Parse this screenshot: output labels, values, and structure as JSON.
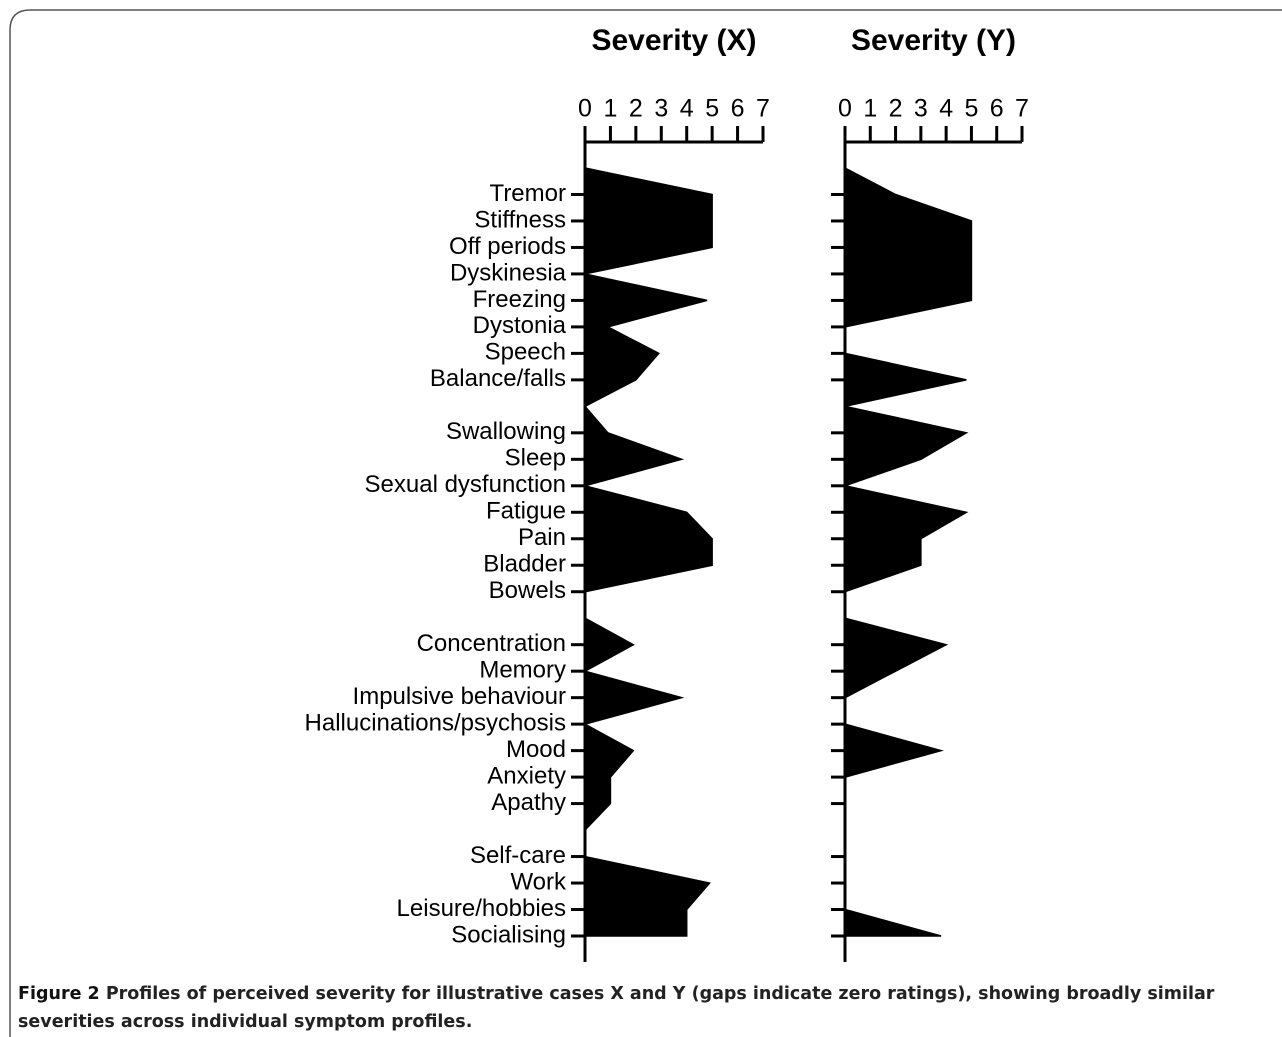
{
  "chart_data": [
    {
      "type": "area",
      "title": "Severity (X)",
      "categories": [
        null,
        "Tremor",
        "Stiffness",
        "Off periods",
        "Dyskinesia",
        "Freezing",
        "Dystonia",
        "Speech",
        "Balance/falls",
        null,
        "Swallowing",
        "Sleep",
        "Sexual dysfunction",
        "Fatigue",
        "Pain",
        "Bladder",
        "Bowels",
        null,
        "Concentration",
        "Memory",
        "Impulsive behaviour",
        "Hallucinations/psychosis",
        "Mood",
        "Anxiety",
        "Apathy",
        null,
        "Self-care",
        "Work",
        "Leisure/hobbies",
        "Socialising"
      ],
      "values": [
        null,
        5,
        5,
        5,
        0,
        4.8,
        0.9,
        2.9,
        2,
        null,
        0.9,
        3.8,
        0,
        4,
        5,
        5,
        0,
        null,
        1.9,
        0,
        3.8,
        0,
        1.9,
        1,
        1,
        null,
        0,
        4.9,
        4,
        4
      ],
      "xlim": [
        0,
        7
      ],
      "xticks": [
        0,
        1,
        2,
        3,
        4,
        5,
        6,
        7
      ],
      "color": "#000000"
    },
    {
      "type": "area",
      "title": "Severity (Y)",
      "values": [
        null,
        2,
        5,
        5,
        5,
        5,
        0,
        0,
        4.8,
        null,
        4.8,
        3,
        0,
        4.8,
        3,
        3,
        0,
        null,
        4,
        2,
        0,
        0,
        3.8,
        0,
        0,
        null,
        0,
        0,
        0,
        3.8
      ],
      "xlim": [
        0,
        7
      ],
      "xticks": [
        0,
        1,
        2,
        3,
        4,
        5,
        6,
        7
      ],
      "color": "#000000"
    }
  ],
  "caption": {
    "label": "Figure 2",
    "text": "Profiles of perceived severity for illustrative cases X and Y (gaps indicate zero ratings), showing broadly similar severities across individual symptom profiles."
  }
}
